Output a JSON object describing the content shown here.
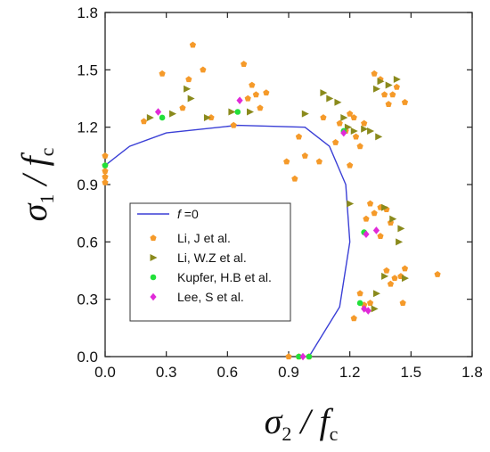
{
  "chart_data": {
    "type": "scatter",
    "title": "",
    "xlabel": {
      "symbol": "σ",
      "sub": "2",
      "rest": " / f",
      "rest_sub": "c"
    },
    "ylabel": {
      "symbol": "σ",
      "sub": "1",
      "rest": " / f",
      "rest_sub": "c"
    },
    "xlim": [
      0,
      1.8
    ],
    "ylim": [
      0,
      1.8
    ],
    "xticks": [
      "0.0",
      "0.3",
      "0.6",
      "0.9",
      "1.2",
      "1.5",
      "1.8"
    ],
    "yticks": [
      "0.0",
      "0.3",
      "0.6",
      "0.9",
      "1.2",
      "1.5",
      "1.8"
    ],
    "legend_position": "center-left",
    "curve": {
      "name_italic": "f",
      "name_rest": " =0",
      "color": "#3a3fd6",
      "points": [
        [
          0.0,
          1.0
        ],
        [
          0.12,
          1.1
        ],
        [
          0.3,
          1.17
        ],
        [
          0.65,
          1.21
        ],
        [
          0.98,
          1.2
        ],
        [
          1.1,
          1.1
        ],
        [
          1.18,
          0.9
        ],
        [
          1.2,
          0.6
        ],
        [
          1.15,
          0.26
        ],
        [
          1.0,
          0.0
        ]
      ]
    },
    "series": [
      {
        "name": "Li, J et al.",
        "marker": "pentagon",
        "color": "#f59a2a",
        "points": [
          [
            0.0,
            1.0
          ],
          [
            0.0,
            0.97
          ],
          [
            0.0,
            0.94
          ],
          [
            0.0,
            0.91
          ],
          [
            0.0,
            1.05
          ],
          [
            0.19,
            1.23
          ],
          [
            0.28,
            1.48
          ],
          [
            0.38,
            1.3
          ],
          [
            0.41,
            1.45
          ],
          [
            0.43,
            1.63
          ],
          [
            0.48,
            1.5
          ],
          [
            0.52,
            1.25
          ],
          [
            0.63,
            1.21
          ],
          [
            0.68,
            1.53
          ],
          [
            0.7,
            1.35
          ],
          [
            0.72,
            1.42
          ],
          [
            0.74,
            1.37
          ],
          [
            0.76,
            1.3
          ],
          [
            0.79,
            1.38
          ],
          [
            0.89,
            1.02
          ],
          [
            0.93,
            0.93
          ],
          [
            0.95,
            1.15
          ],
          [
            0.98,
            1.05
          ],
          [
            1.05,
            1.02
          ],
          [
            1.07,
            1.25
          ],
          [
            1.13,
            1.12
          ],
          [
            1.15,
            1.22
          ],
          [
            1.18,
            1.18
          ],
          [
            1.2,
            1.27
          ],
          [
            1.22,
            1.25
          ],
          [
            1.23,
            1.15
          ],
          [
            1.25,
            1.1
          ],
          [
            1.27,
            1.22
          ],
          [
            1.2,
            1.0
          ],
          [
            1.25,
            0.33
          ],
          [
            1.22,
            0.2
          ],
          [
            1.27,
            0.27
          ],
          [
            1.3,
            0.28
          ],
          [
            1.28,
            0.72
          ],
          [
            1.3,
            0.8
          ],
          [
            1.32,
            0.75
          ],
          [
            1.35,
            0.78
          ],
          [
            1.35,
            0.63
          ],
          [
            1.38,
            0.77
          ],
          [
            1.4,
            0.7
          ],
          [
            1.32,
            1.48
          ],
          [
            1.35,
            1.45
          ],
          [
            1.37,
            1.37
          ],
          [
            1.39,
            1.32
          ],
          [
            1.41,
            1.37
          ],
          [
            1.43,
            1.41
          ],
          [
            1.47,
            1.33
          ],
          [
            1.38,
            0.45
          ],
          [
            1.4,
            0.38
          ],
          [
            1.42,
            0.41
          ],
          [
            1.45,
            0.42
          ],
          [
            1.47,
            0.46
          ],
          [
            1.46,
            0.28
          ],
          [
            1.63,
            0.43
          ],
          [
            1.0,
            0.0
          ],
          [
            0.95,
            0.0
          ],
          [
            0.9,
            0.0
          ]
        ]
      },
      {
        "name": "Li, W.Z et al.",
        "marker": "triangle-right",
        "color": "#8a8a1c",
        "points": [
          [
            0.22,
            1.25
          ],
          [
            0.33,
            1.27
          ],
          [
            0.4,
            1.4
          ],
          [
            0.42,
            1.35
          ],
          [
            0.5,
            1.25
          ],
          [
            0.62,
            1.28
          ],
          [
            0.71,
            1.28
          ],
          [
            0.98,
            1.27
          ],
          [
            1.07,
            1.38
          ],
          [
            1.1,
            1.35
          ],
          [
            1.14,
            1.33
          ],
          [
            1.17,
            1.25
          ],
          [
            1.19,
            1.2
          ],
          [
            1.22,
            1.18
          ],
          [
            1.27,
            1.19
          ],
          [
            1.3,
            1.18
          ],
          [
            1.34,
            1.15
          ],
          [
            1.33,
            1.4
          ],
          [
            1.35,
            1.44
          ],
          [
            1.39,
            1.42
          ],
          [
            1.43,
            1.45
          ],
          [
            1.37,
            0.78
          ],
          [
            1.41,
            0.72
          ],
          [
            1.44,
            0.6
          ],
          [
            1.45,
            0.67
          ],
          [
            1.47,
            0.41
          ],
          [
            1.32,
            0.25
          ],
          [
            1.33,
            0.33
          ],
          [
            1.37,
            0.42
          ],
          [
            1.2,
            0.8
          ]
        ]
      },
      {
        "name": "Kupfer, H.B et al.",
        "marker": "circle",
        "color": "#22e03a",
        "points": [
          [
            0.0,
            1.0
          ],
          [
            0.28,
            1.25
          ],
          [
            0.65,
            1.28
          ],
          [
            1.17,
            1.18
          ],
          [
            1.27,
            0.65
          ],
          [
            1.25,
            0.28
          ],
          [
            0.95,
            0.0
          ],
          [
            1.0,
            0.0
          ]
        ]
      },
      {
        "name": "Lee, S et al.",
        "marker": "diamond",
        "color": "#e02ad8",
        "points": [
          [
            0.26,
            1.28
          ],
          [
            0.66,
            1.34
          ],
          [
            1.17,
            1.17
          ],
          [
            1.28,
            0.64
          ],
          [
            1.33,
            0.66
          ],
          [
            1.27,
            0.25
          ],
          [
            1.29,
            0.24
          ],
          [
            0.97,
            0.0
          ]
        ]
      }
    ]
  }
}
